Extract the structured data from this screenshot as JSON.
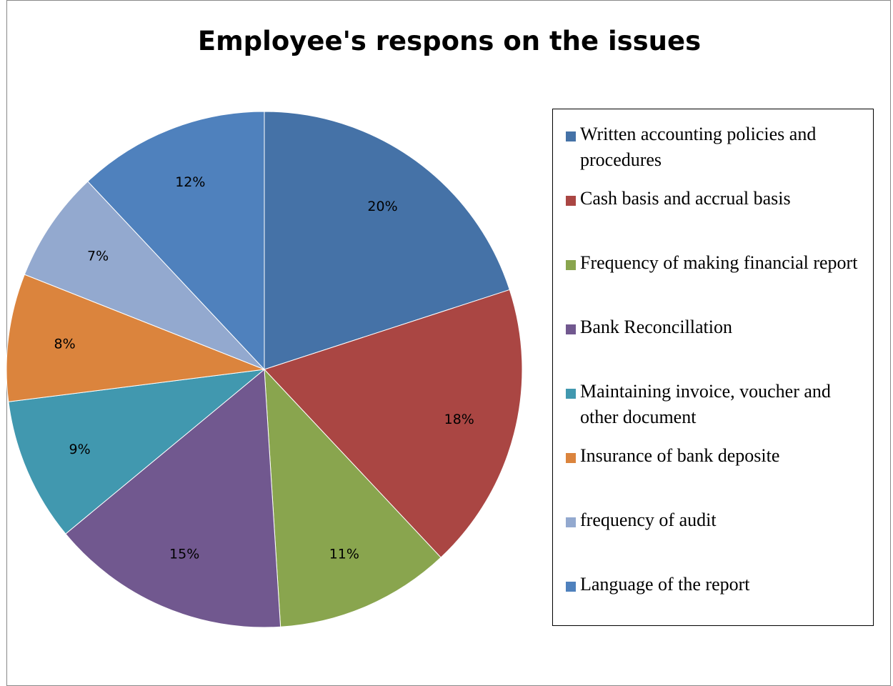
{
  "chart_data": {
    "type": "pie",
    "title": "Employee's respons on the issues",
    "slices": [
      {
        "label": "Written accounting policies and procedures",
        "value": 20,
        "display": "20%",
        "color": "#4572A7"
      },
      {
        "label": "Cash basis and accrual basis",
        "value": 18,
        "display": "18%",
        "color": "#AA4643"
      },
      {
        "label": "Frequency of making financial report",
        "value": 11,
        "display": "11%",
        "color": "#89A54E"
      },
      {
        "label": "Bank Reconcillation",
        "value": 15,
        "display": "15%",
        "color": "#71588F"
      },
      {
        "label": "Maintaining invoice, voucher and other document",
        "value": 9,
        "display": "9%",
        "color": "#4198AF"
      },
      {
        "label": "Insurance of bank deposite",
        "value": 8,
        "display": "8%",
        "color": "#DB843D"
      },
      {
        "label": "frequency of audit",
        "value": 7,
        "display": "7%",
        "color": "#93A9CF"
      },
      {
        "label": "Language of the report",
        "value": 12,
        "display": "12%",
        "color": "#4F81BD"
      }
    ],
    "legend_position": "right"
  }
}
